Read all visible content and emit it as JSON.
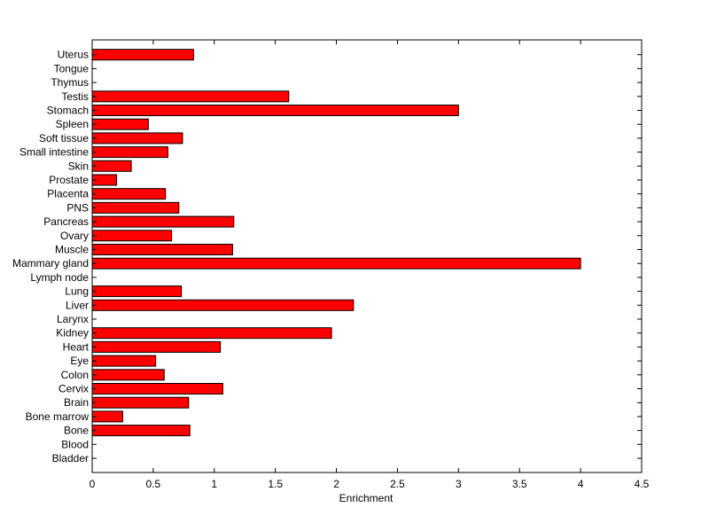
{
  "chart_data": {
    "type": "bar",
    "orientation": "horizontal",
    "xlabel": "Enrichment",
    "ylabel": "",
    "xlim": [
      0,
      4.5
    ],
    "xticks": [
      "0",
      "0.5",
      "1",
      "1.5",
      "2",
      "2.5",
      "3",
      "3.5",
      "4",
      "4.5"
    ],
    "grid": false,
    "bar_color": "#ff0000",
    "bar_edge_color": "#000000",
    "categories": [
      "Bladder",
      "Blood",
      "Bone",
      "Bone marrow",
      "Brain",
      "Cervix",
      "Colon",
      "Eye",
      "Heart",
      "Kidney",
      "Larynx",
      "Liver",
      "Lung",
      "Lymph node",
      "Mammary gland",
      "Muscle",
      "Ovary",
      "Pancreas",
      "PNS",
      "Placenta",
      "Prostate",
      "Skin",
      "Small intestine",
      "Soft tissue",
      "Spleen",
      "Stomach",
      "Testis",
      "Thymus",
      "Tongue",
      "Uterus"
    ],
    "values": [
      0,
      0,
      0.8,
      0.25,
      0.79,
      1.07,
      0.59,
      0.52,
      1.05,
      1.96,
      0,
      2.14,
      0.73,
      0,
      4.0,
      1.15,
      0.65,
      1.16,
      0.71,
      0.6,
      0.2,
      0.32,
      0.62,
      0.74,
      0.46,
      3.0,
      1.61,
      0,
      0,
      0.83
    ]
  }
}
